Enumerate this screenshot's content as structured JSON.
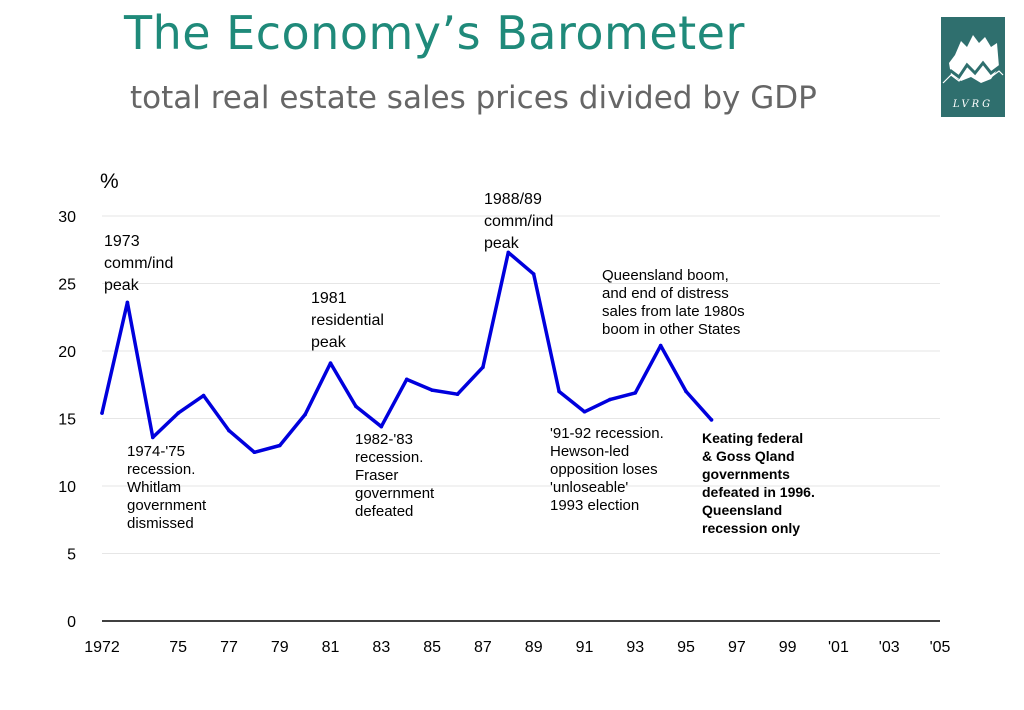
{
  "title": "The Economy’s Barometer",
  "subtitle": "total real estate sales prices divided by GDP",
  "logo": {
    "icon": "lvrg-logo-icon",
    "text": "LVRG",
    "color": "#2f6f6e"
  },
  "chart_data": {
    "type": "line",
    "unit_label": "%",
    "xlabel": "",
    "ylabel": "",
    "x_tick_labels": [
      "1972",
      "75",
      "77",
      "79",
      "81",
      "83",
      "85",
      "87",
      "89",
      "91",
      "93",
      "95",
      "97",
      "99",
      "'01",
      "'03",
      "'05"
    ],
    "x_tick_values": [
      1972,
      1975,
      1977,
      1979,
      1981,
      1983,
      1985,
      1987,
      1989,
      1991,
      1993,
      1995,
      1997,
      1999,
      2001,
      2003,
      2005
    ],
    "y_ticks": [
      0,
      5,
      10,
      15,
      20,
      25,
      30
    ],
    "xlim": [
      1972,
      2005
    ],
    "ylim": [
      0,
      30
    ],
    "grid": true,
    "line_color": "#0000dd",
    "series": [
      {
        "x": [
          1972,
          1973,
          1974,
          1975,
          1976,
          1977,
          1978,
          1979,
          1980,
          1981,
          1982,
          1983,
          1984,
          1985,
          1986,
          1987,
          1988,
          1989,
          1990,
          1991,
          1992,
          1993,
          1994,
          1995,
          1996
        ],
        "values": [
          15.4,
          23.6,
          13.6,
          15.4,
          16.7,
          14.1,
          12.5,
          13.0,
          15.3,
          19.1,
          15.9,
          14.4,
          17.9,
          17.1,
          16.8,
          18.8,
          27.3,
          25.7,
          17.0,
          15.5,
          16.4,
          16.9,
          20.4,
          17.0,
          14.9
        ]
      }
    ],
    "annotations": [
      {
        "text": "1973\ncomm/ind\npeak",
        "style": "big"
      },
      {
        "text": "1988/89\ncomm/ind\npeak",
        "style": "big"
      },
      {
        "text": "1981\nresidential\npeak",
        "style": "big"
      },
      {
        "text": "Queensland boom,\nand end of distress\nsales from late 1980s\nboom in other States",
        "style": "normal"
      },
      {
        "text": "1974-'75\nrecession.\nWhitlam\ngovernment\ndismissed",
        "style": "normal"
      },
      {
        "text": "1982-'83\nrecession.\nFraser\ngovernment\ndefeated",
        "style": "normal"
      },
      {
        "text": "'91-92 recession.\nHewson-led\nopposition loses\n'unloseable'\n1993 election",
        "style": "normal"
      },
      {
        "text": "Keating federal\n& Goss Qland\ngovernments\ndefeated in 1996.\nQueensland\nrecession only",
        "style": "bold"
      }
    ]
  }
}
